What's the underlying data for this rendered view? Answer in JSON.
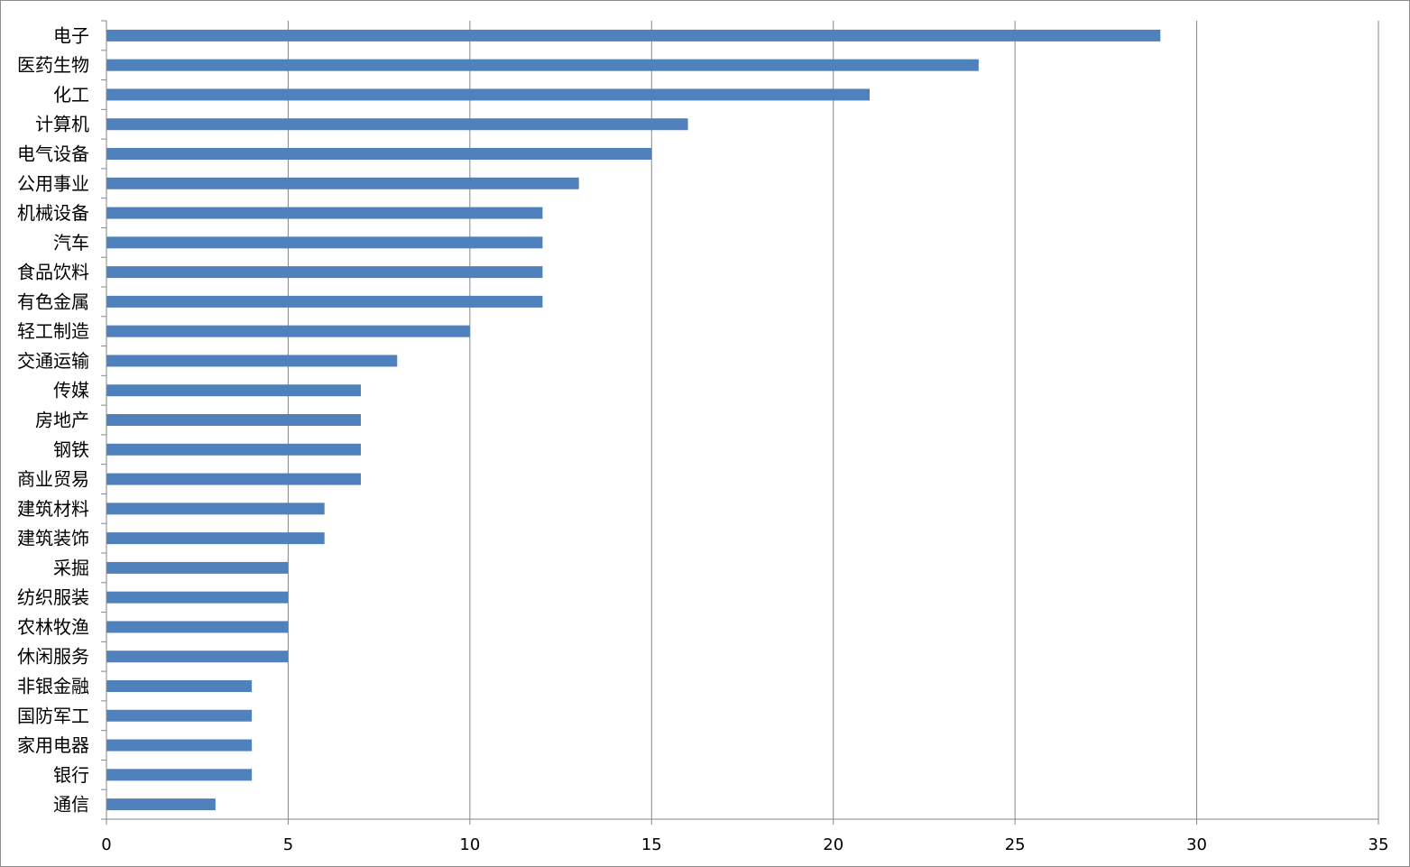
{
  "chart_data": {
    "type": "bar",
    "orientation": "horizontal",
    "categories": [
      "电子",
      "医药生物",
      "化工",
      "计算机",
      "电气设备",
      "公用事业",
      "机械设备",
      "汽车",
      "食品饮料",
      "有色金属",
      "轻工制造",
      "交通运输",
      "传媒",
      "房地产",
      "钢铁",
      "商业贸易",
      "建筑材料",
      "建筑装饰",
      "采掘",
      "纺织服装",
      "农林牧渔",
      "休闲服务",
      "非银金融",
      "国防军工",
      "家用电器",
      "银行",
      "通信"
    ],
    "values": [
      29,
      24,
      21,
      16,
      15,
      13,
      12,
      12,
      12,
      12,
      10,
      8,
      7,
      7,
      7,
      7,
      6,
      6,
      5,
      5,
      5,
      5,
      4,
      4,
      4,
      4,
      3
    ],
    "title": "",
    "xlabel": "",
    "ylabel": "",
    "xlim": [
      0,
      35
    ],
    "x_ticks": [
      "0",
      "5",
      "10",
      "15",
      "20",
      "25",
      "30",
      "35"
    ],
    "vertical_gridlines": true,
    "legend": "none",
    "bar_color": "#4f81bd",
    "gridline_color": "#868686",
    "axis_color": "#868686"
  }
}
